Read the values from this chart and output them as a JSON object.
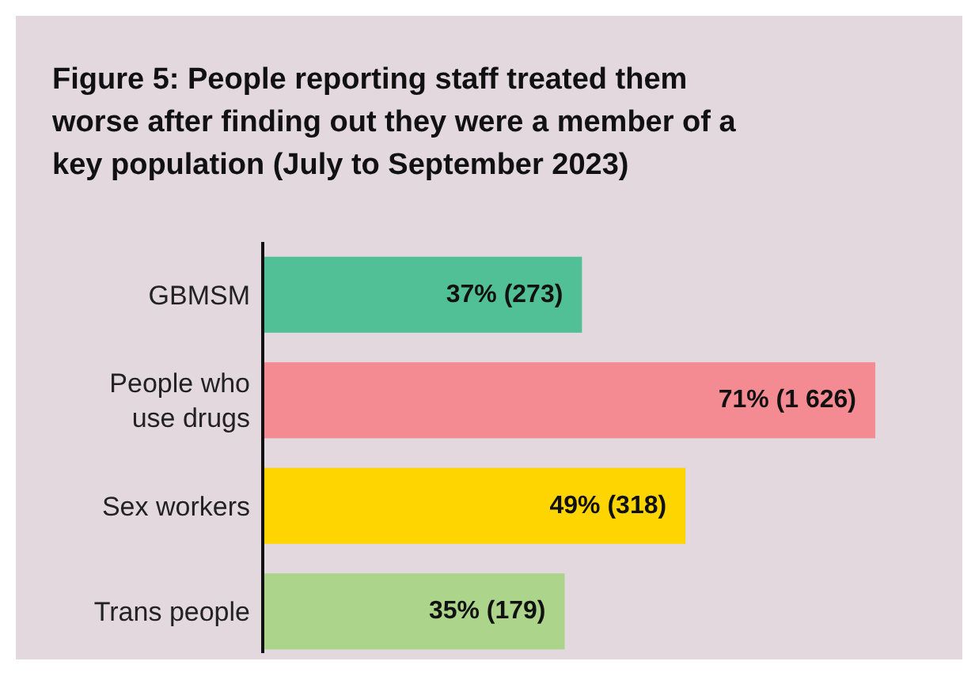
{
  "chart_data": {
    "type": "bar",
    "orientation": "horizontal",
    "title": "Figure 5: People reporting staff treated them worse after finding out they were a member of a key population (July to September 2023)",
    "categories": [
      "GBMSM",
      "People who use drugs",
      "Sex workers",
      "Trans people"
    ],
    "values": [
      37,
      71,
      49,
      35
    ],
    "colors": [
      "#52c096",
      "#f48a92",
      "#ffd500",
      "#acd48a"
    ],
    "value_labels": [
      "37% (273)",
      "71% (1 626)",
      "49% (318)",
      "35% (179)"
    ]
  }
}
